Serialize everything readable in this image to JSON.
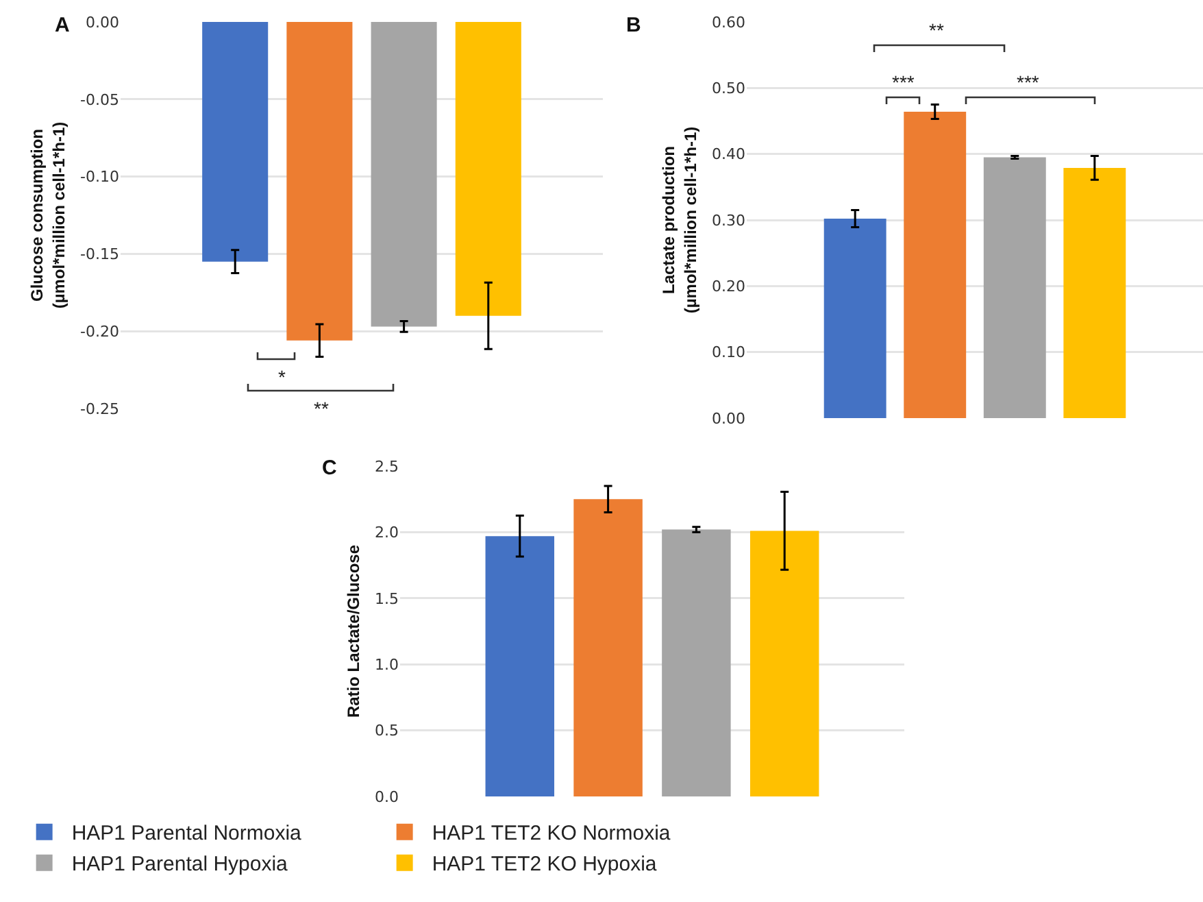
{
  "chart_data": [
    {
      "type": "bar",
      "title": "A",
      "ylabel": "Glucose consumption\n(µmol*million cell-1*h-1)",
      "categories": [
        null
      ],
      "series": [
        {
          "color": "#4472c4",
          "values": [
            -0.155
          ],
          "errors": [
            0.0075
          ]
        },
        {
          "color": "#ed7d31",
          "values": [
            -0.206
          ],
          "errors": [
            0.0105
          ]
        },
        {
          "color": "#a5a5a5",
          "values": [
            -0.197
          ],
          "errors": [
            0.0035
          ]
        },
        {
          "color": "#ffc000",
          "values": [
            -0.19
          ],
          "errors": [
            0.0215
          ]
        }
      ],
      "ylim": [
        -0.25,
        0
      ],
      "yticks": [
        {
          "value": -0.25,
          "label": "-0.25"
        },
        {
          "value": -0.2,
          "label": "-0.20"
        },
        {
          "value": -0.15,
          "label": "-0.15"
        },
        {
          "value": -0.1,
          "label": "-0.10"
        },
        {
          "value": -0.05,
          "label": "-0.05"
        },
        {
          "value": 0,
          "label": "0.00"
        }
      ],
      "grid": "y",
      "legend": false,
      "annotations": [
        "*",
        "**"
      ]
    },
    {
      "type": "bar",
      "title": "B",
      "ylabel": "Lactate production\n(µmol*million cell-1*h-1)",
      "categories": [
        null
      ],
      "series": [
        {
          "color": "#4472c4",
          "values": [
            0.302
          ],
          "errors": [
            0.013
          ]
        },
        {
          "color": "#ed7d31",
          "values": [
            0.464
          ],
          "errors": [
            0.011
          ]
        },
        {
          "color": "#a5a5a5",
          "values": [
            0.395
          ],
          "errors": [
            0.002
          ]
        },
        {
          "color": "#ffc000",
          "values": [
            0.379
          ],
          "errors": [
            0.018
          ]
        }
      ],
      "ylim": [
        0,
        0.6
      ],
      "yticks": [
        {
          "value": 0,
          "label": "0.00"
        },
        {
          "value": 0.1,
          "label": "0.10"
        },
        {
          "value": 0.2,
          "label": "0.20"
        },
        {
          "value": 0.3,
          "label": "0.30"
        },
        {
          "value": 0.4,
          "label": "0.40"
        },
        {
          "value": 0.5,
          "label": "0.50"
        },
        {
          "value": 0.6,
          "label": "0.60"
        }
      ],
      "grid": "y",
      "legend": false,
      "annotations": [
        "**",
        "***",
        "***"
      ]
    },
    {
      "type": "bar",
      "title": "C",
      "ylabel": "Ratio Lactate/Glucose",
      "categories": [
        null
      ],
      "series": [
        {
          "name": "HAP1 Parental Normoxia",
          "color": "#4472c4",
          "values": [
            1.97
          ],
          "errors": [
            0.155
          ]
        },
        {
          "name": "HAP1 TET2 KO Normoxia",
          "color": "#ed7d31",
          "values": [
            2.25
          ],
          "errors": [
            0.1
          ]
        },
        {
          "name": "HAP1 Parental Hypoxia",
          "color": "#a5a5a5",
          "values": [
            2.02
          ],
          "errors": [
            0.02
          ]
        },
        {
          "name": "HAP1 TET2 KO Hypoxia",
          "color": "#ffc000",
          "values": [
            2.01
          ],
          "errors": [
            0.295
          ]
        }
      ],
      "ylim": [
        0,
        2.5
      ],
      "yticks": [
        {
          "value": 0,
          "label": "0.0"
        },
        {
          "value": 0.5,
          "label": "0.5"
        },
        {
          "value": 1,
          "label": "1.0"
        },
        {
          "value": 1.5,
          "label": "1.5"
        },
        {
          "value": 2,
          "label": "2.0"
        },
        {
          "value": 2.5,
          "label": "2.5"
        }
      ],
      "grid": "y",
      "legend": "bottom"
    }
  ]
}
